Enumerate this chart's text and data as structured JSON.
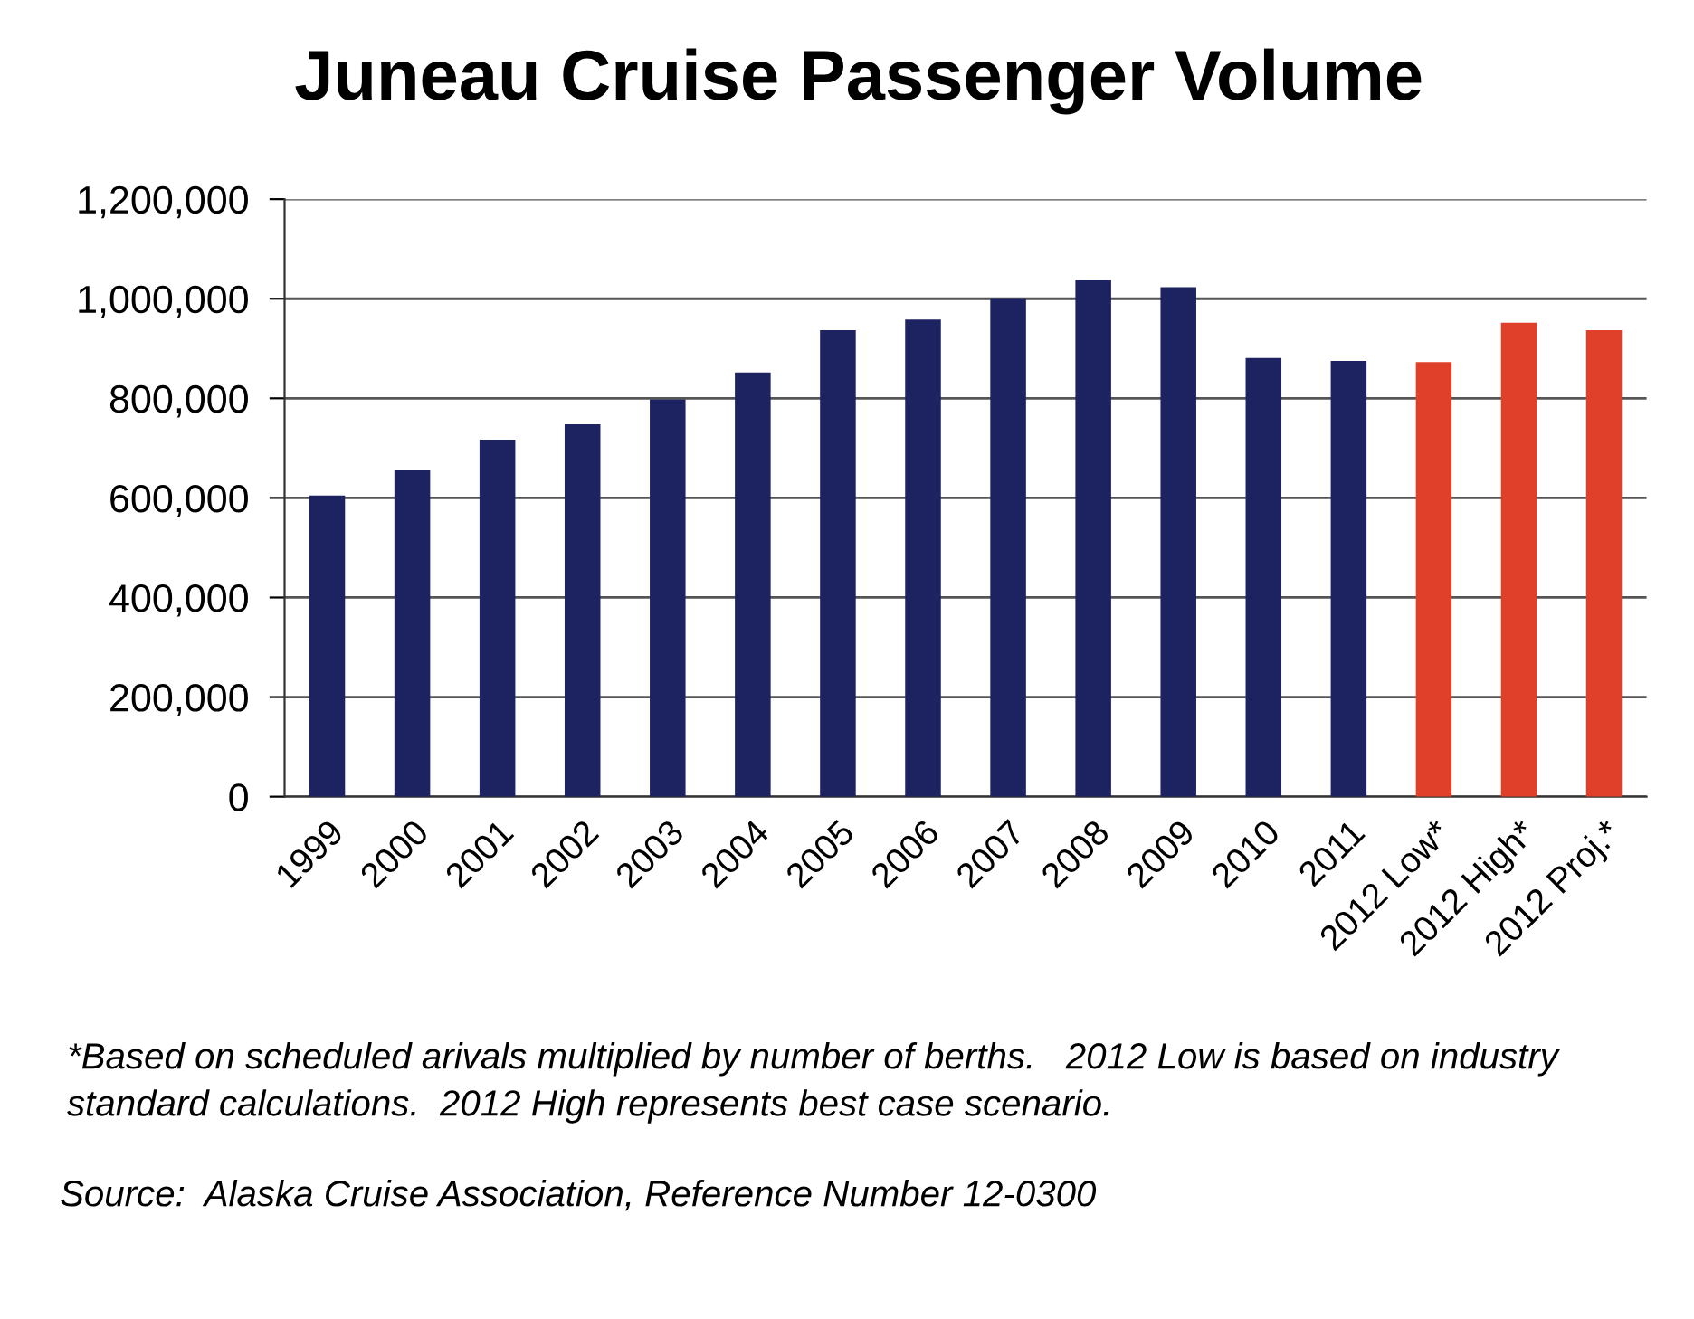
{
  "chart_data": {
    "type": "bar",
    "title": "Juneau Cruise Passenger Volume",
    "categories": [
      "1999",
      "2000",
      "2001",
      "2002",
      "2003",
      "2004",
      "2005",
      "2006",
      "2007",
      "2008",
      "2009",
      "2010",
      "2011",
      "2012 Low*",
      "2012 High*",
      "2012 Proj.*"
    ],
    "values": [
      605000,
      655000,
      717000,
      748000,
      798000,
      852000,
      937000,
      958000,
      1001000,
      1038000,
      1023000,
      881000,
      875000,
      873000,
      952000,
      937000
    ],
    "colors": [
      "#1c2360",
      "#1c2360",
      "#1c2360",
      "#1c2360",
      "#1c2360",
      "#1c2360",
      "#1c2360",
      "#1c2360",
      "#1c2360",
      "#1c2360",
      "#1c2360",
      "#1c2360",
      "#1c2360",
      "#e0402a",
      "#e0402a",
      "#e0402a"
    ],
    "ylim": [
      0,
      1200000
    ],
    "yticks": [
      0,
      {
        "value": 200000,
        "label": "200,000"
      },
      {
        "value": 400000,
        "label": "400,000"
      },
      {
        "value": 600000,
        "label": "600,000"
      },
      {
        "value": 800000,
        "label": "800,000"
      },
      {
        "value": 1000000,
        "label": "1,000,000"
      },
      {
        "value": 1200000,
        "label": "1,200,000"
      }
    ],
    "grid": "y",
    "annotations": [
      "*Based on scheduled arivals multiplied by number of berths.   2012 Low is based on industry standard calculations.  2012 High represents best case scenario.",
      "Source:  Alaska Cruise Association, Reference Number 12-0300"
    ]
  }
}
